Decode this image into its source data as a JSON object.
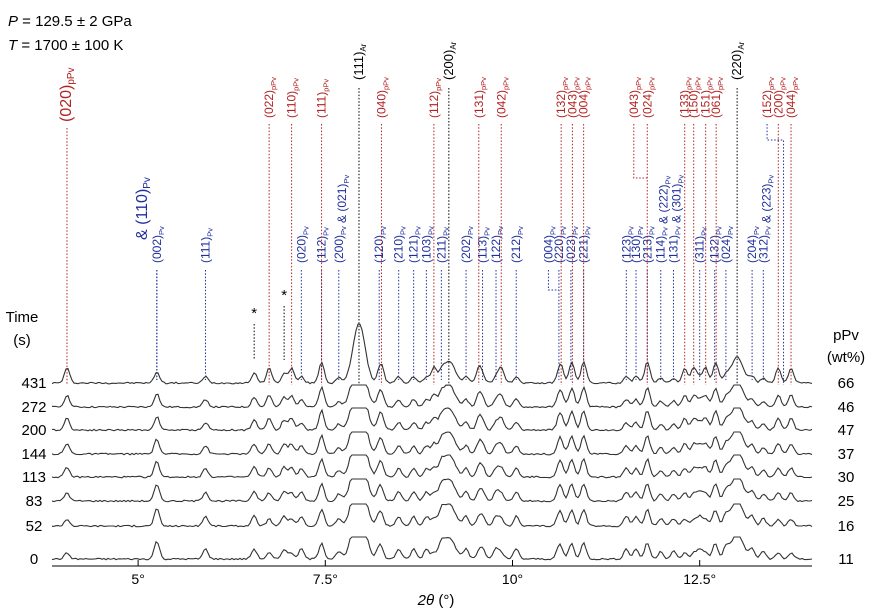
{
  "header": {
    "pressure_var": "P",
    "pressure_text": " = 129.5 ± 2 GPa",
    "temperature_var": "T",
    "temperature_text": " = 1700 ± 100 K"
  },
  "colors": {
    "ppv": "#b22222",
    "pv": "#1f2f9c",
    "ar": "#000000",
    "trace": "#333333"
  },
  "chart_data": {
    "type": "line",
    "xlabel_var": "2θ",
    "xlabel_unit": " (°)",
    "xlim": [
      3.85,
      14.0
    ],
    "x_ticks": [
      {
        "value": 5.0,
        "label": "5°"
      },
      {
        "value": 7.5,
        "label": "7.5°"
      },
      {
        "value": 10.0,
        "label": "10°"
      },
      {
        "value": 12.5,
        "label": "12.5°"
      }
    ],
    "left_title": [
      "Time",
      "(s)"
    ],
    "right_title": [
      "pPv",
      "(wt%)"
    ],
    "series": [
      {
        "time": "431",
        "ppv": "66"
      },
      {
        "time": "272",
        "ppv": "46"
      },
      {
        "time": "200",
        "ppv": "47"
      },
      {
        "time": "144",
        "ppv": "37"
      },
      {
        "time": "113",
        "ppv": "30"
      },
      {
        "time": "83",
        "ppv": "25"
      },
      {
        "time": "52",
        "ppv": "16"
      },
      {
        "time": "0",
        "ppv": "11"
      }
    ],
    "ar_peaks": [
      {
        "x": 7.95,
        "label": "(111)",
        "sub": "Ar"
      },
      {
        "x": 9.15,
        "label": "(200)",
        "sub": "Ar"
      },
      {
        "x": 13.0,
        "label": "(220)",
        "sub": "Ar"
      }
    ],
    "ppv_peaks": [
      {
        "x": 4.05,
        "label": "(020)",
        "sub": "pPv"
      },
      {
        "x": 6.75,
        "label": "(022)",
        "sub": "pPv"
      },
      {
        "x": 7.05,
        "label": "(110)",
        "sub": "pPv"
      },
      {
        "x": 7.45,
        "label": "(111)",
        "sub": "pPv"
      },
      {
        "x": 8.25,
        "label": "(040)",
        "sub": "pPv"
      },
      {
        "x": 8.95,
        "label": "(112)",
        "sub": "pPv"
      },
      {
        "x": 9.55,
        "label": "(131)",
        "sub": "pPv"
      },
      {
        "x": 9.85,
        "label": "(042)",
        "sub": "pPv"
      },
      {
        "x": 10.65,
        "label": "(132)",
        "sub": "pPv"
      },
      {
        "x": 10.8,
        "label": "(043)",
        "sub": "pPv"
      },
      {
        "x": 10.95,
        "label": "(004)",
        "sub": "pPv"
      },
      {
        "x": 11.8,
        "label": "(024)",
        "sub": "pPv"
      },
      {
        "x": 12.3,
        "label": "(133)",
        "sub": "pPv"
      },
      {
        "x": 12.42,
        "label": "(150)",
        "sub": "pPv"
      },
      {
        "x": 12.58,
        "label": "(151)",
        "sub": "pPv"
      },
      {
        "x": 12.72,
        "label": "(061)",
        "sub": "pPv"
      },
      {
        "x": 13.55,
        "label": "(200)",
        "sub": "pPv"
      },
      {
        "x": 13.72,
        "label": "(044)",
        "sub": "pPv"
      }
    ],
    "ppv_bracket_peaks": [
      {
        "label": "(043)",
        "sub": "pPv"
      },
      {
        "label": "(152)",
        "sub": "pPv"
      }
    ],
    "pv_peaks": [
      {
        "x": 5.25,
        "label": "(002)",
        "sub": "Pv"
      },
      {
        "x": 5.9,
        "label": "(111)",
        "sub": "Pv"
      },
      {
        "x": 7.18,
        "label": "(020)",
        "sub": "Pv"
      },
      {
        "x": 7.45,
        "label": "(112)",
        "sub": "Pv"
      },
      {
        "x": 8.22,
        "label": "(120)",
        "sub": "Pv"
      },
      {
        "x": 8.48,
        "label": "(210)",
        "sub": "Pv"
      },
      {
        "x": 8.68,
        "label": "(121)",
        "sub": "Pv"
      },
      {
        "x": 8.85,
        "label": "(103)",
        "sub": "Pv"
      },
      {
        "x": 9.05,
        "label": "(211)",
        "sub": "Pv"
      },
      {
        "x": 9.38,
        "label": "(202)",
        "sub": "Pv"
      },
      {
        "x": 9.6,
        "label": "(113)",
        "sub": "Pv"
      },
      {
        "x": 9.78,
        "label": "(122)",
        "sub": "Pv"
      },
      {
        "x": 10.05,
        "label": "(212)",
        "sub": "Pv"
      },
      {
        "x": 10.62,
        "label": "(220)",
        "sub": "Pv"
      },
      {
        "x": 10.78,
        "label": "(023)",
        "sub": "Pv"
      },
      {
        "x": 10.95,
        "label": "(221)",
        "sub": "Pv"
      },
      {
        "x": 11.52,
        "label": "(123)",
        "sub": "Pv"
      },
      {
        "x": 11.65,
        "label": "(130)",
        "sub": "Pv"
      },
      {
        "x": 11.8,
        "label": "(213)",
        "sub": "Pv"
      },
      {
        "x": 12.5,
        "label": "(311)",
        "sub": "Pv"
      },
      {
        "x": 12.7,
        "label": "(132)",
        "sub": "Pv"
      },
      {
        "x": 12.85,
        "label": "(024)",
        "sub": "Pv"
      },
      {
        "x": 13.2,
        "label": "(204)",
        "sub": "Pv"
      }
    ],
    "pv_compound_labels": [
      {
        "x": 5.25,
        "parts": [
          {
            "label": "(110)",
            "sub": "Pv"
          }
        ],
        "prefix": "& "
      },
      {
        "x": 7.68,
        "parts": [
          {
            "label": "(200)",
            "sub": "Pv"
          },
          {
            "label": "(021)",
            "sub": "Pv"
          }
        ]
      },
      {
        "x": 11.98,
        "parts": [
          {
            "label": "(114)",
            "sub": "Pv"
          },
          {
            "label": "(222)",
            "sub": "Pv"
          }
        ]
      },
      {
        "x": 12.15,
        "parts": [
          {
            "label": "(131)",
            "sub": "Pv"
          },
          {
            "label": "(301)",
            "sub": "Pv"
          }
        ]
      },
      {
        "x": 13.35,
        "parts": [
          {
            "label": "(312)",
            "sub": "Pv"
          },
          {
            "label": "(223)",
            "sub": "Pv"
          }
        ]
      }
    ],
    "pv_bracket_labels": [
      {
        "label": "(004)",
        "sub": "Pv"
      }
    ],
    "asterisk_positions": [
      6.55,
      6.95
    ],
    "asterisk": "*"
  }
}
